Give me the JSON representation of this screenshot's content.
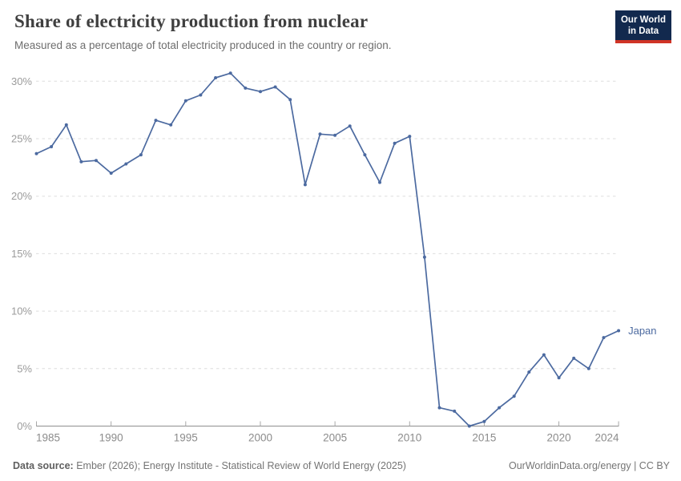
{
  "header": {
    "title": "Share of electricity production from nuclear",
    "subtitle": "Measured as a percentage of total electricity produced in the country or region.",
    "logo": {
      "line1": "Our World",
      "line2": "in Data"
    }
  },
  "chart_data": {
    "type": "line",
    "title": "Share of electricity production from nuclear",
    "xlabel": "",
    "ylabel": "",
    "xlim": [
      1985,
      2024
    ],
    "ylim": [
      0,
      31
    ],
    "grid": true,
    "x_ticks": [
      1985,
      1990,
      1995,
      2000,
      2005,
      2010,
      2015,
      2020,
      2024
    ],
    "y_ticks": [
      0,
      5,
      10,
      15,
      20,
      25,
      30
    ],
    "y_tick_suffix": "%",
    "legend_position": "end-of-line",
    "colors": {
      "line": "#4C6AA0",
      "gridline": "#dedede",
      "axis": "#8f8f8f",
      "tick": "#a8a8a8",
      "axis_label": "#9b9b9b",
      "x_label": "#8c8c8c"
    },
    "series": [
      {
        "name": "Japan",
        "color": "#4C6AA0",
        "x": [
          1985,
          1986,
          1987,
          1988,
          1989,
          1990,
          1991,
          1992,
          1993,
          1994,
          1995,
          1996,
          1997,
          1998,
          1999,
          2000,
          2001,
          2002,
          2003,
          2004,
          2005,
          2006,
          2007,
          2008,
          2009,
          2010,
          2011,
          2012,
          2013,
          2014,
          2015,
          2016,
          2017,
          2018,
          2019,
          2020,
          2021,
          2022,
          2023,
          2024
        ],
        "values": [
          23.7,
          24.3,
          26.2,
          23.0,
          23.1,
          22.0,
          22.8,
          23.6,
          26.6,
          26.2,
          28.3,
          28.8,
          30.3,
          30.7,
          29.4,
          29.1,
          29.5,
          28.4,
          21.0,
          25.4,
          25.3,
          26.1,
          23.6,
          21.2,
          24.6,
          25.2,
          14.7,
          1.6,
          1.3,
          0.0,
          0.4,
          1.6,
          2.6,
          4.7,
          6.2,
          4.2,
          5.9,
          5.0,
          7.7,
          8.3
        ]
      }
    ]
  },
  "footer": {
    "source_label": "Data source:",
    "source_text": " Ember (2026); Energy Institute - Statistical Review of World Energy (2025)",
    "rights": "OurWorldinData.org/energy | CC BY"
  }
}
